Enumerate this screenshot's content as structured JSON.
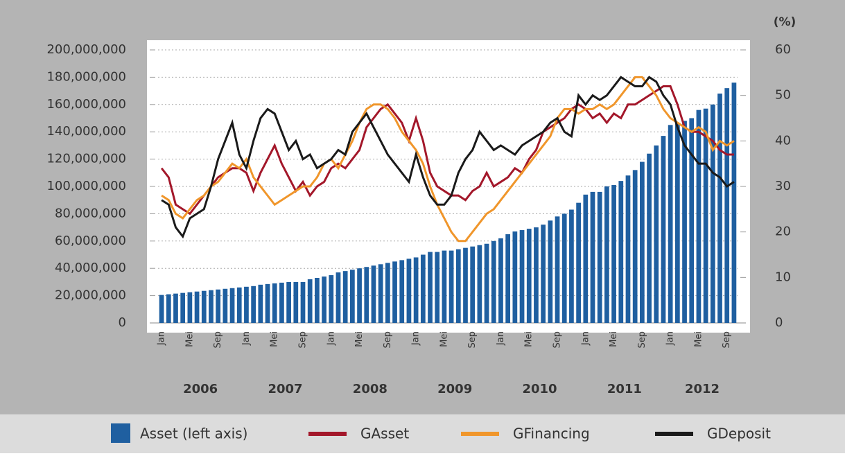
{
  "chart_data": {
    "type": "combo",
    "y2_label": "(%)",
    "categories": [
      "Jan",
      null,
      null,
      null,
      "Mei",
      null,
      null,
      null,
      "Sep",
      null,
      null,
      null,
      "Jan",
      null,
      null,
      null,
      "Mei",
      null,
      null,
      null,
      "Sep",
      null,
      null,
      null,
      "Jan",
      null,
      null,
      null,
      "Mei",
      null,
      null,
      null,
      "Sep",
      null,
      null,
      null,
      "Jan",
      null,
      null,
      null,
      "Mei",
      null,
      null,
      null,
      "Sep",
      null,
      null,
      null,
      "Jan",
      null,
      null,
      null,
      "Mei",
      null,
      null,
      null,
      "Sep",
      null,
      null,
      null,
      "Jan",
      null,
      null,
      null,
      "Mei",
      null,
      null,
      null,
      "Sep",
      null,
      null,
      null,
      "Jan",
      null,
      null,
      null,
      "Mei",
      null,
      null,
      null,
      "Sep",
      null
    ],
    "years": [
      "2006",
      "2007",
      "2008",
      "2009",
      "2010",
      "2011",
      "2012"
    ],
    "ylim": [
      0,
      200000000
    ],
    "yticks": [
      0,
      {
        "value": 20000000,
        "label": "20,000,000"
      },
      {
        "value": 40000000,
        "label": "40,000,000"
      },
      {
        "value": 60000000,
        "label": "60,000,000"
      },
      {
        "value": 80000000,
        "label": "80,000,000"
      },
      {
        "value": 100000000,
        "label": "100,000,000"
      },
      {
        "value": 120000000,
        "label": "120,000,000"
      },
      {
        "value": 140000000,
        "label": "140,000,000"
      },
      {
        "value": 160000000,
        "label": "160,000,000"
      },
      {
        "value": 180000000,
        "label": "180,000,000"
      },
      {
        "value": 200000000,
        "label": "200,000,000"
      }
    ],
    "y2lim": [
      0,
      60
    ],
    "y2ticks": [
      0,
      10,
      20,
      30,
      40,
      50,
      60
    ],
    "grid": true,
    "series": [
      {
        "name": "Asset (left axis)",
        "type": "bar",
        "axis": "y",
        "color": "#1f5fa0",
        "values": [
          20500000,
          21000000,
          21500000,
          22000000,
          22500000,
          23000000,
          23500000,
          24000000,
          24500000,
          25000000,
          25500000,
          26000000,
          26500000,
          27000000,
          28000000,
          28500000,
          29000000,
          29500000,
          30000000,
          30000000,
          30000000,
          32000000,
          33000000,
          34000000,
          35000000,
          37000000,
          38000000,
          39000000,
          40000000,
          41000000,
          42000000,
          43000000,
          44000000,
          45000000,
          46000000,
          47000000,
          48000000,
          50000000,
          52000000,
          52000000,
          53000000,
          53000000,
          54000000,
          55000000,
          56000000,
          57000000,
          58000000,
          60000000,
          62000000,
          65000000,
          67000000,
          68000000,
          69000000,
          70000000,
          72000000,
          75000000,
          78000000,
          80000000,
          83000000,
          88000000,
          94000000,
          96000000,
          96000000,
          100000000,
          101000000,
          104000000,
          108000000,
          112000000,
          118000000,
          124000000,
          130000000,
          137000000,
          145000000,
          146000000,
          148000000,
          150000000,
          156000000,
          157000000,
          160000000,
          168000000,
          172000000,
          176000000
        ]
      },
      {
        "name": "GAsset",
        "type": "line",
        "axis": "y2",
        "color": "#a3172a",
        "values": [
          34,
          32,
          26,
          25,
          24,
          26,
          28,
          30,
          32,
          33,
          34,
          34,
          33,
          29,
          33,
          36,
          39,
          35,
          32,
          29,
          31,
          28,
          30,
          31,
          34,
          35,
          34,
          36,
          38,
          43,
          45,
          47,
          48,
          46,
          44,
          40,
          45,
          40,
          33,
          30,
          29,
          28,
          28,
          27,
          29,
          30,
          33,
          30,
          31,
          32,
          34,
          33,
          36,
          38,
          42,
          43,
          44,
          45,
          47,
          48,
          47,
          45,
          46,
          44,
          46,
          45,
          48,
          48,
          49,
          50,
          51,
          52,
          52,
          48,
          43,
          42,
          42,
          41,
          40,
          38,
          37,
          37
        ]
      },
      {
        "name": "GFinancing",
        "type": "line",
        "axis": "y2",
        "color": "#f0962b",
        "values": [
          28,
          27,
          24,
          23,
          25,
          27,
          28,
          30,
          31,
          33,
          35,
          34,
          36,
          32,
          30,
          28,
          26,
          27,
          28,
          29,
          30,
          30,
          32,
          35,
          36,
          34,
          37,
          40,
          44,
          47,
          48,
          48,
          47,
          45,
          42,
          40,
          38,
          35,
          30,
          26,
          23,
          20,
          18,
          18,
          20,
          22,
          24,
          25,
          27,
          29,
          31,
          33,
          35,
          37,
          39,
          41,
          45,
          47,
          47,
          46,
          47,
          47,
          48,
          47,
          48,
          50,
          52,
          54,
          54,
          52,
          50,
          47,
          45,
          44,
          43,
          42,
          43,
          42,
          38,
          40,
          39,
          40
        ]
      },
      {
        "name": "GDeposit",
        "type": "line",
        "axis": "y2",
        "color": "#1a1a1a",
        "values": [
          27,
          26,
          21,
          19,
          23,
          24,
          25,
          30,
          36,
          40,
          44,
          37,
          34,
          40,
          45,
          47,
          46,
          42,
          38,
          40,
          36,
          37,
          34,
          35,
          36,
          38,
          37,
          42,
          44,
          46,
          43,
          40,
          37,
          35,
          33,
          31,
          37,
          32,
          28,
          26,
          26,
          28,
          33,
          36,
          38,
          42,
          40,
          38,
          39,
          38,
          37,
          39,
          40,
          41,
          42,
          44,
          45,
          42,
          41,
          50,
          48,
          50,
          49,
          50,
          52,
          54,
          53,
          52,
          52,
          54,
          53,
          50,
          48,
          43,
          39,
          37,
          35,
          35,
          33,
          32,
          30,
          31
        ]
      }
    ]
  }
}
